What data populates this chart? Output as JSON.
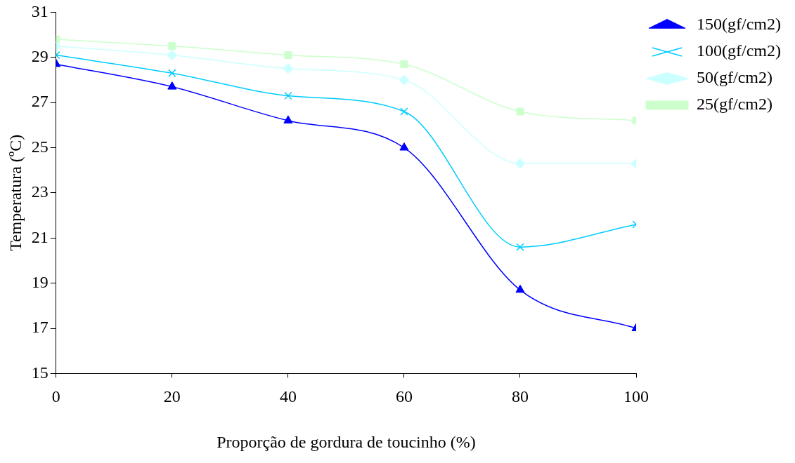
{
  "chart_data": {
    "type": "line",
    "xlabel": "Proporção de gordura de toucinho (%)",
    "ylabel": "Temperatura (ºC)",
    "x": [
      0,
      20,
      40,
      60,
      80,
      100
    ],
    "xlim": [
      0,
      100
    ],
    "xticks": [
      0,
      20,
      40,
      60,
      80,
      100
    ],
    "ylim": [
      15,
      31
    ],
    "yticks": [
      15,
      17,
      19,
      21,
      23,
      25,
      27,
      29,
      31
    ],
    "grid": false,
    "legend": "top right",
    "series": [
      {
        "name": "150(gf/cm2)",
        "color": "#0000ff",
        "marker": "triangle",
        "values": [
          28.7,
          27.7,
          26.2,
          25.0,
          18.7,
          17.0
        ]
      },
      {
        "name": "100(gf/cm2)",
        "color": "#00ccff",
        "marker": "cross",
        "values": [
          29.1,
          28.3,
          27.3,
          26.6,
          20.6,
          21.6
        ]
      },
      {
        "name": "50(gf/cm2)",
        "color": "#ccffff",
        "marker": "diamond",
        "values": [
          29.5,
          29.1,
          28.5,
          28.0,
          24.3,
          24.3
        ]
      },
      {
        "name": "25(gf/cm2)",
        "color": "#ccffcc",
        "marker": "square",
        "values": [
          29.8,
          29.5,
          29.1,
          28.7,
          26.6,
          26.2
        ]
      }
    ]
  }
}
